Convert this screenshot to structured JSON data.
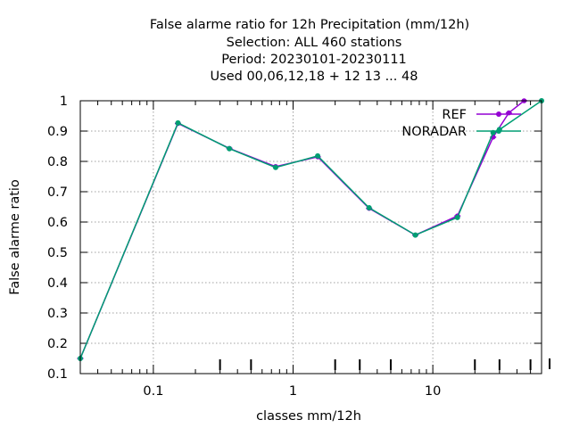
{
  "chart_data": {
    "type": "line",
    "title_lines": [
      "False alarme ratio  for 12h Precipitation (mm/12h)",
      "Selection: ALL    460 stations",
      "Period: 20230101-20230111",
      "Used  00,06,12,18 + 12 13 ... 48"
    ],
    "xlabel": "classes mm/12h",
    "ylabel": "False alarme ratio",
    "xscale": "log",
    "xlim": [
      0.03,
      60
    ],
    "ylim": [
      0.1,
      1.0
    ],
    "x_ticks": [
      0.1,
      1,
      10
    ],
    "x_tick_labels": [
      "0.1",
      "1",
      "10"
    ],
    "y_ticks": [
      0.1,
      0.2,
      0.3,
      0.4,
      0.5,
      0.6,
      0.7,
      0.8,
      0.9,
      1.0
    ],
    "y_tick_labels": [
      "0.1",
      "0.2",
      "0.3",
      "0.4",
      "0.5",
      "0.6",
      "0.7",
      "0.8",
      "0.9",
      "1"
    ],
    "grid": true,
    "legend_position": "top-right",
    "series": [
      {
        "name": "REF",
        "color": "#9400d3",
        "x": [
          0.03,
          0.15,
          0.35,
          0.75,
          1.5,
          3.5,
          7.5,
          15,
          27,
          35,
          45
        ],
        "y": [
          0.15,
          0.925,
          0.843,
          0.783,
          0.815,
          0.645,
          0.557,
          0.62,
          0.88,
          0.96,
          1.0
        ]
      },
      {
        "name": "NORADAR",
        "color": "#009e73",
        "x": [
          0.03,
          0.15,
          0.35,
          0.75,
          1.5,
          3.5,
          7.5,
          15,
          27,
          30,
          60
        ],
        "y": [
          0.15,
          0.927,
          0.842,
          0.78,
          0.818,
          0.647,
          0.557,
          0.615,
          0.895,
          0.905,
          1.0
        ]
      }
    ]
  }
}
